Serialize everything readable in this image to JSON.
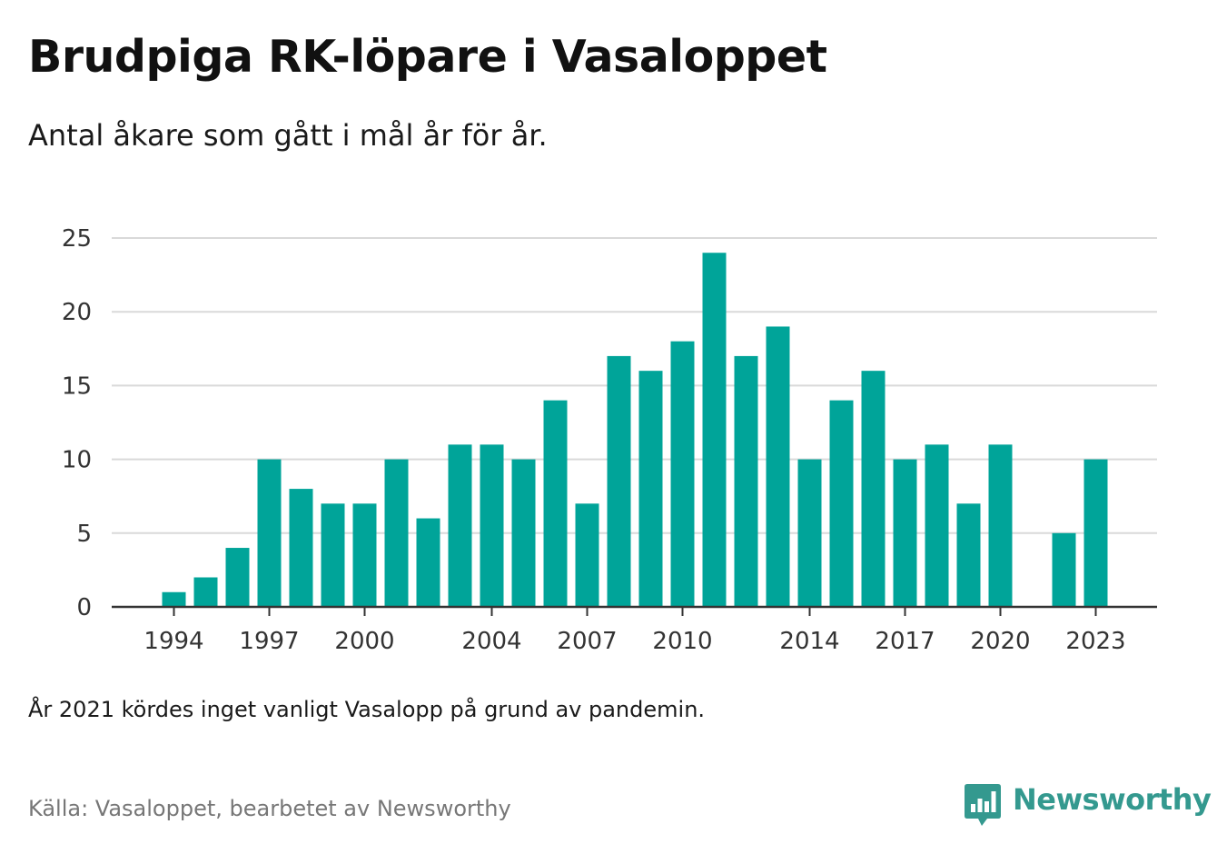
{
  "header": {
    "title": "Brudpiga RK-löpare i Vasaloppet",
    "subtitle": "Antal åkare som gått i mål år för år."
  },
  "footer": {
    "note": "År 2021 kördes inget vanligt Vasalopp på grund av pandemin.",
    "source": "Källa: Vasaloppet, bearbetet av Newsworthy",
    "brand": "Newsworthy"
  },
  "colors": {
    "bar": "#00a499",
    "brand": "#34998f",
    "grid": "#d9d9d9",
    "axis": "#333333"
  },
  "chart_data": {
    "type": "bar",
    "title": "Brudpiga RK-löpare i Vasaloppet",
    "subtitle": "Antal åkare som gått i mål år för år.",
    "xlabel": "",
    "ylabel": "",
    "ylim": [
      0,
      25
    ],
    "yticks": [
      0,
      5,
      10,
      15,
      20,
      25
    ],
    "xlim": [
      1993,
      2024
    ],
    "xticks": [
      1994,
      1997,
      2000,
      2004,
      2007,
      2010,
      2014,
      2017,
      2020,
      2023
    ],
    "grid": true,
    "legend": "none",
    "x": [
      1994,
      1995,
      1996,
      1997,
      1998,
      1999,
      2000,
      2001,
      2002,
      2003,
      2004,
      2005,
      2006,
      2007,
      2008,
      2009,
      2010,
      2011,
      2012,
      2013,
      2014,
      2015,
      2016,
      2017,
      2018,
      2019,
      2020,
      2021,
      2022,
      2023
    ],
    "values": [
      1,
      2,
      4,
      10,
      8,
      7,
      7,
      10,
      6,
      11,
      11,
      10,
      14,
      7,
      17,
      16,
      18,
      24,
      17,
      19,
      10,
      14,
      16,
      10,
      11,
      7,
      11,
      0,
      5,
      10
    ]
  }
}
